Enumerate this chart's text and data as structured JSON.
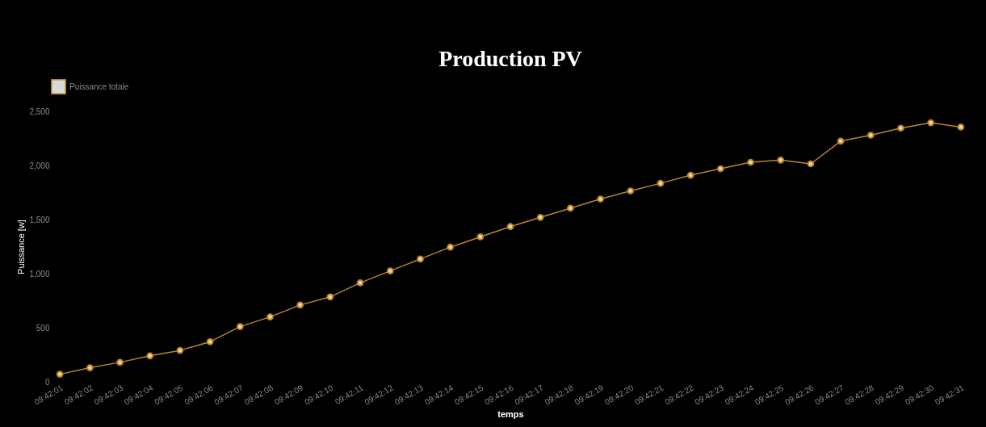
{
  "chart_data": {
    "type": "line",
    "title": "Production PV",
    "xlabel": "temps",
    "ylabel": "Puissance [w]",
    "categories": [
      "09:42:01",
      "09:42:02",
      "09:42:03",
      "09:42:04",
      "09:42:05",
      "09:42:06",
      "09:42:07",
      "09:42:08",
      "09:42:09",
      "09:42:10",
      "09:42:11",
      "09:42:12",
      "09:42:13",
      "09:42:14",
      "09:42:15",
      "09:42:16",
      "09:42:17",
      "09:42:18",
      "09:42:19",
      "09:42:20",
      "09:42:21",
      "09:42:22",
      "09:42:23",
      "09:42:24",
      "09:42:25",
      "09:42:26",
      "09:42:27",
      "09:42:28",
      "09:42:29",
      "09:42:30",
      "09:42:31"
    ],
    "series": [
      {
        "name": "Puissance totale",
        "color": "#b8862b",
        "values": [
          70,
          130,
          180,
          240,
          290,
          370,
          510,
          600,
          710,
          785,
          915,
          1025,
          1135,
          1245,
          1340,
          1435,
          1520,
          1605,
          1690,
          1765,
          1835,
          1910,
          1970,
          2030,
          2050,
          2015,
          2225,
          2280,
          2345,
          2395,
          2355
        ]
      }
    ],
    "ylim": [
      0,
      2500
    ],
    "yticks": [
      0,
      500,
      {
        "value": 1000,
        "label": "1,000"
      },
      {
        "value": 1500,
        "label": "1,500"
      },
      {
        "value": 2000,
        "label": "2,000"
      },
      {
        "value": 2500,
        "label": "2,500"
      }
    ],
    "grid": false,
    "legend": "top",
    "marker": "circle",
    "line_style": "solid"
  }
}
